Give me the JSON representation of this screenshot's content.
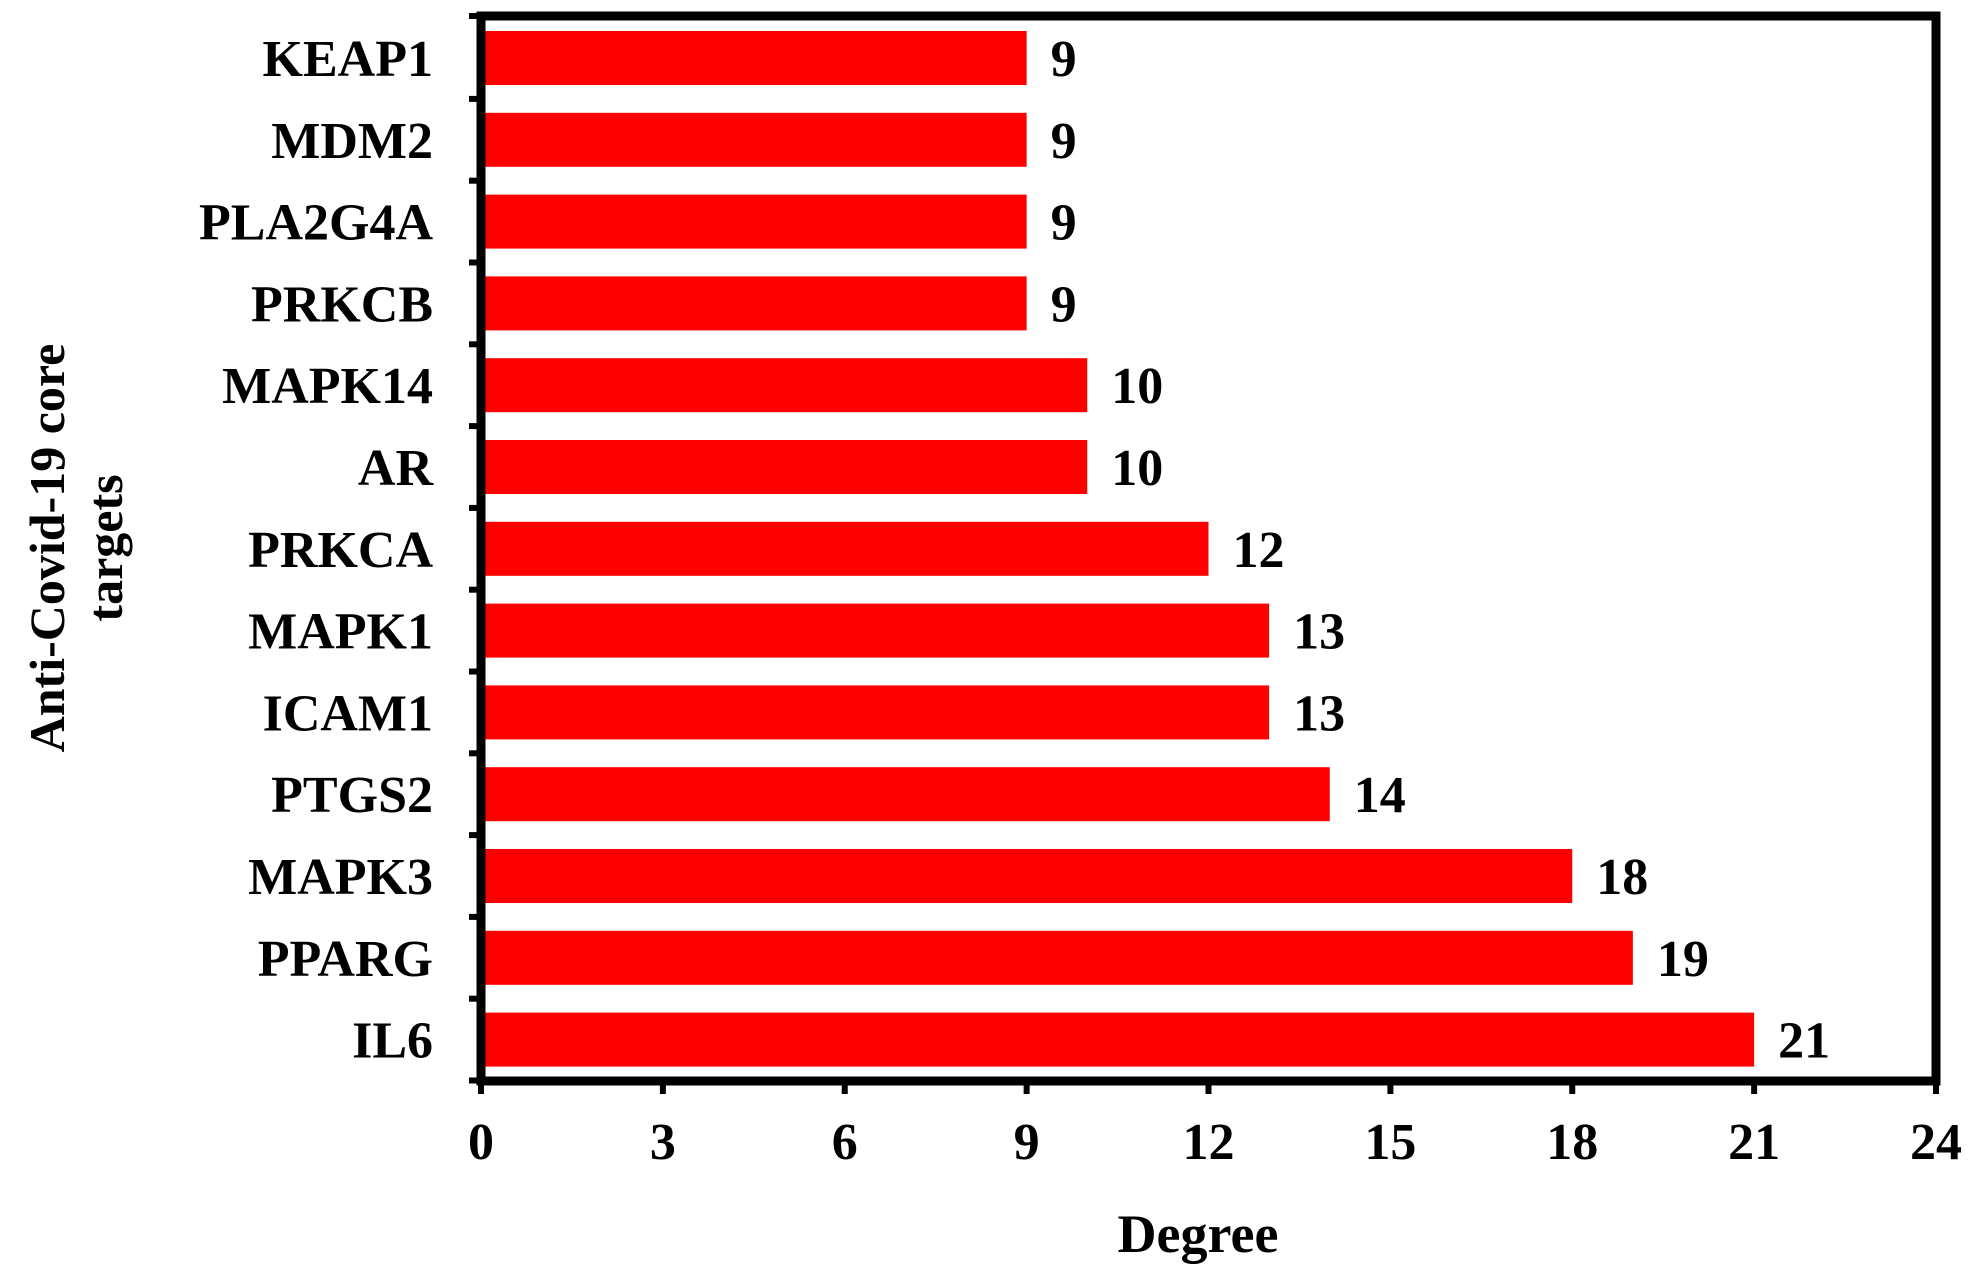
{
  "chart_data": {
    "type": "bar",
    "orientation": "horizontal",
    "categories": [
      "KEAP1",
      "MDM2",
      "PLA2G4A",
      "PRKCB",
      "MAPK14",
      "AR",
      "PRKCA",
      "MAPK1",
      "ICAM1",
      "PTGS2",
      "MAPK3",
      "PPARG",
      "IL6"
    ],
    "values": [
      9,
      9,
      9,
      9,
      10,
      10,
      12,
      13,
      13,
      14,
      18,
      19,
      21
    ],
    "data_labels": [
      "9",
      "9",
      "9",
      "9",
      "10",
      "10",
      "12",
      "13",
      "13",
      "14",
      "18",
      "19",
      "21"
    ],
    "xlabel": "Degree",
    "ylabel_lines": [
      "Anti-Covid-19 core",
      "targets"
    ],
    "xlim": [
      0,
      24
    ],
    "x_ticks": [
      "0",
      "3",
      "6",
      "9",
      "12",
      "15",
      "18",
      "21",
      "24"
    ],
    "grid": false,
    "legend": "none",
    "bar_color": "#ff0000",
    "axis_color": "#000000"
  }
}
